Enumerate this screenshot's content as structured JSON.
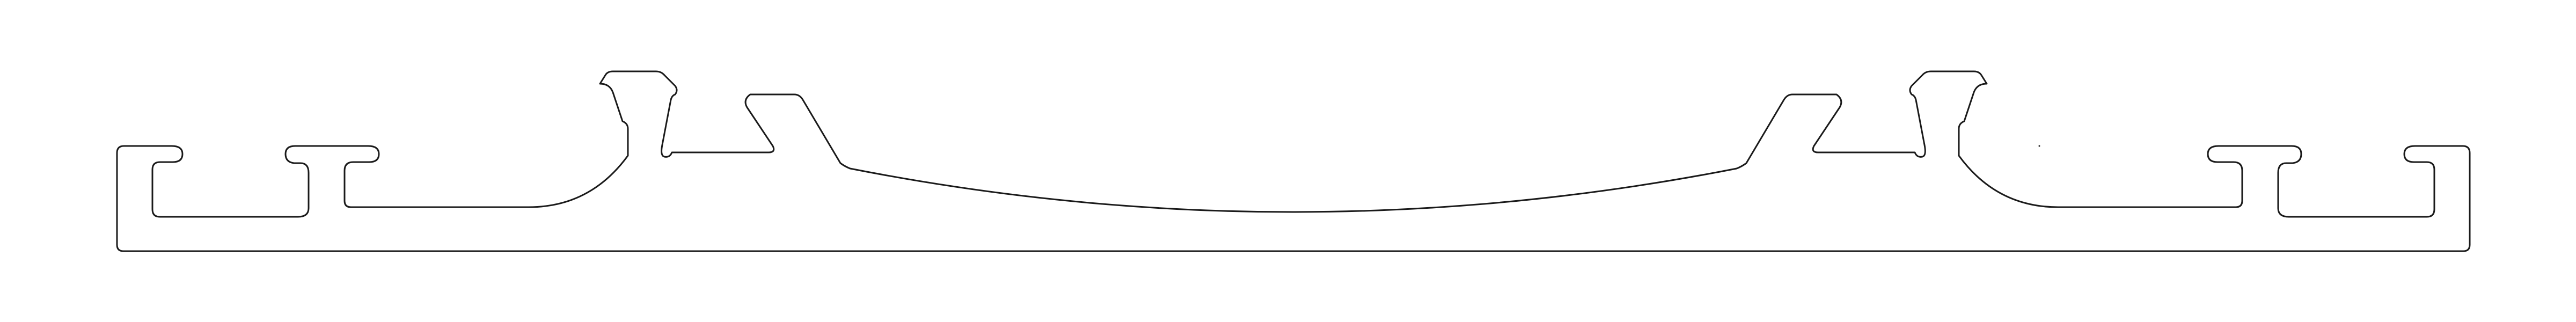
{
  "drawing": {
    "subject": "extrusion-profile-cross-section",
    "view": "line-drawing",
    "background_color": "#ffffff",
    "line_color": "#1a1a1a",
    "symmetry": "mirror-about-vertical-center",
    "features": {
      "outer_t_slots_each_side": 2,
      "snap_hooks_each_side": 1,
      "center_arch": 1
    }
  }
}
